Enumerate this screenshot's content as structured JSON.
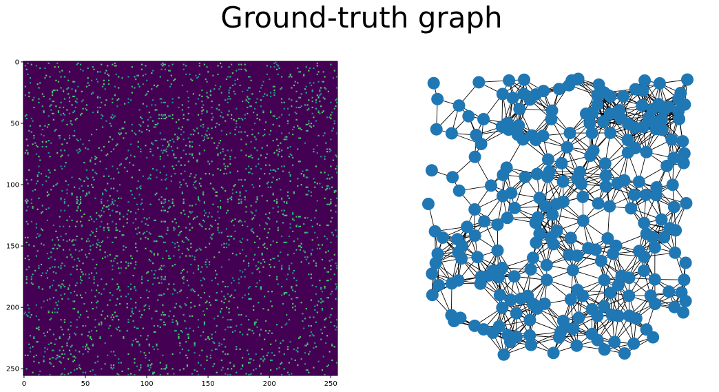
{
  "figure": {
    "title": "Ground-truth graph"
  },
  "chart_data": [
    {
      "type": "heatmap",
      "title": "",
      "xlabel": "",
      "ylabel": "",
      "xlim": [
        0,
        256
      ],
      "ylim": [
        256,
        0
      ],
      "x_ticks": [
        "0",
        "50",
        "100",
        "150",
        "200",
        "250"
      ],
      "y_ticks": [
        "0",
        "50",
        "100",
        "150",
        "200",
        "250"
      ],
      "matrix_size": 256,
      "value_range": [
        0,
        1
      ],
      "colormap": "viridis",
      "background_color": "#440154",
      "entry_colors": [
        "#35b779",
        "#21918c",
        "#5ec962"
      ],
      "grid": false
    },
    {
      "type": "network",
      "title": "",
      "node_count": 256,
      "node_color": "#1f77b4",
      "edge_color": "#000000",
      "axes_visible": false
    }
  ]
}
